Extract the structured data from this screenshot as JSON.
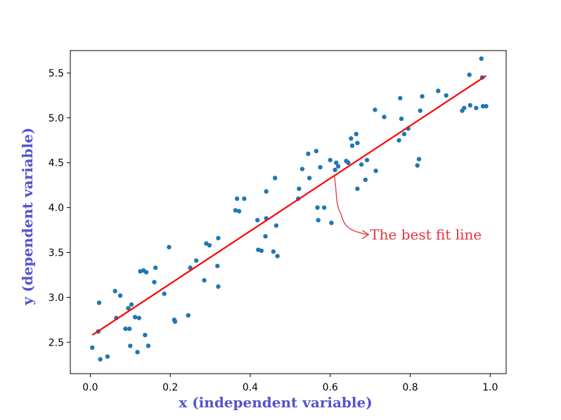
{
  "chart_data": {
    "type": "scatter",
    "xlabel": "x (independent variable)",
    "ylabel": "y (dependent variable)",
    "xlim": [
      -0.05,
      1.04
    ],
    "ylim": [
      2.15,
      5.75
    ],
    "x_ticks": [
      0.0,
      0.2,
      0.4,
      0.6,
      0.8,
      1.0
    ],
    "x_tick_labels": [
      "0.0",
      "0.2",
      "0.4",
      "0.6",
      "0.8",
      "1.0"
    ],
    "y_ticks": [
      2.5,
      3.0,
      3.5,
      4.0,
      4.5,
      5.0,
      5.5
    ],
    "y_tick_labels": [
      "2.5",
      "3.0",
      "3.5",
      "4.0",
      "4.5",
      "5.0",
      "5.5"
    ],
    "grid": false,
    "series": [
      {
        "kind": "scatter",
        "color": "#1f77b4",
        "points": [
          [
            0.005,
            2.44
          ],
          [
            0.02,
            2.62
          ],
          [
            0.022,
            2.94
          ],
          [
            0.025,
            2.31
          ],
          [
            0.043,
            2.34
          ],
          [
            0.062,
            3.07
          ],
          [
            0.065,
            2.77
          ],
          [
            0.075,
            3.02
          ],
          [
            0.088,
            2.65
          ],
          [
            0.095,
            2.88
          ],
          [
            0.098,
            2.65
          ],
          [
            0.1,
            2.46
          ],
          [
            0.103,
            2.92
          ],
          [
            0.112,
            2.78
          ],
          [
            0.118,
            2.39
          ],
          [
            0.122,
            2.77
          ],
          [
            0.125,
            3.29
          ],
          [
            0.133,
            3.3
          ],
          [
            0.137,
            2.58
          ],
          [
            0.14,
            3.28
          ],
          [
            0.145,
            2.46
          ],
          [
            0.16,
            3.17
          ],
          [
            0.163,
            3.33
          ],
          [
            0.185,
            3.04
          ],
          [
            0.197,
            3.56
          ],
          [
            0.21,
            2.75
          ],
          [
            0.212,
            2.73
          ],
          [
            0.245,
            2.8
          ],
          [
            0.25,
            3.33
          ],
          [
            0.265,
            3.41
          ],
          [
            0.285,
            3.19
          ],
          [
            0.29,
            3.6
          ],
          [
            0.298,
            3.58
          ],
          [
            0.318,
            3.35
          ],
          [
            0.32,
            3.12
          ],
          [
            0.32,
            3.66
          ],
          [
            0.363,
            3.97
          ],
          [
            0.367,
            4.1
          ],
          [
            0.372,
            3.96
          ],
          [
            0.385,
            4.1
          ],
          [
            0.418,
            3.86
          ],
          [
            0.42,
            3.53
          ],
          [
            0.428,
            3.52
          ],
          [
            0.438,
            3.68
          ],
          [
            0.44,
            3.88
          ],
          [
            0.44,
            4.18
          ],
          [
            0.458,
            3.51
          ],
          [
            0.462,
            4.33
          ],
          [
            0.465,
            3.8
          ],
          [
            0.468,
            3.46
          ],
          [
            0.52,
            4.1
          ],
          [
            0.522,
            4.21
          ],
          [
            0.53,
            4.43
          ],
          [
            0.545,
            4.6
          ],
          [
            0.548,
            4.33
          ],
          [
            0.565,
            4.63
          ],
          [
            0.568,
            4.0
          ],
          [
            0.57,
            3.86
          ],
          [
            0.575,
            4.45
          ],
          [
            0.585,
            4.0
          ],
          [
            0.6,
            4.53
          ],
          [
            0.603,
            3.83
          ],
          [
            0.612,
            4.42
          ],
          [
            0.615,
            4.5
          ],
          [
            0.62,
            4.46
          ],
          [
            0.64,
            4.52
          ],
          [
            0.645,
            4.5
          ],
          [
            0.652,
            4.77
          ],
          [
            0.655,
            4.69
          ],
          [
            0.665,
            4.82
          ],
          [
            0.668,
            4.72
          ],
          [
            0.668,
            4.21
          ],
          [
            0.678,
            4.48
          ],
          [
            0.688,
            4.31
          ],
          [
            0.692,
            4.53
          ],
          [
            0.712,
            5.09
          ],
          [
            0.714,
            4.41
          ],
          [
            0.735,
            5.01
          ],
          [
            0.772,
            4.75
          ],
          [
            0.775,
            5.22
          ],
          [
            0.778,
            4.99
          ],
          [
            0.785,
            4.82
          ],
          [
            0.795,
            4.88
          ],
          [
            0.818,
            4.47
          ],
          [
            0.822,
            4.54
          ],
          [
            0.825,
            5.08
          ],
          [
            0.83,
            5.24
          ],
          [
            0.87,
            5.3
          ],
          [
            0.89,
            5.25
          ],
          [
            0.93,
            5.08
          ],
          [
            0.935,
            5.11
          ],
          [
            0.948,
            5.48
          ],
          [
            0.95,
            5.14
          ],
          [
            0.965,
            5.11
          ],
          [
            0.978,
            5.66
          ],
          [
            0.98,
            5.45
          ],
          [
            0.982,
            5.13
          ],
          [
            0.99,
            5.13
          ]
        ]
      },
      {
        "kind": "line",
        "color": "#ff0000",
        "points": [
          [
            0.005,
            2.58
          ],
          [
            0.99,
            5.47
          ]
        ]
      }
    ],
    "annotations": [
      {
        "text": "The best fit line",
        "color": "#e8323c",
        "target": [
          0.61,
          4.36
        ],
        "text_anchor": [
          0.71,
          3.7
        ]
      }
    ],
    "axis_title_color": "#5555cc"
  }
}
